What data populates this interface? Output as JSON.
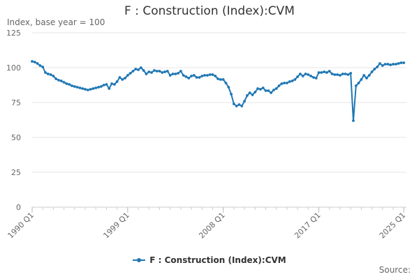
{
  "chart_data": {
    "type": "line",
    "title": "F : Construction (Index):CVM",
    "subtitle": "Index, base year = 100",
    "ylim": [
      0,
      125
    ],
    "yticks": [
      0,
      25,
      50,
      75,
      100,
      125
    ],
    "xlim": [
      1990.0,
      2025.25
    ],
    "xticks": [
      {
        "label": "1990 Q1",
        "x": 1990.0
      },
      {
        "label": "1999 Q1",
        "x": 1999.0
      },
      {
        "label": "2008 Q1",
        "x": 2008.0
      },
      {
        "label": "2017 Q1",
        "x": 2017.0
      },
      {
        "label": "2025 Q1",
        "x": 2025.0
      }
    ],
    "grid": "horizontal",
    "legend": "bottom",
    "series": [
      {
        "name": "F : Construction (Index):CVM",
        "color": "#1f77b4",
        "points": [
          [
            1990.0,
            104.5
          ],
          [
            1990.25,
            104.0
          ],
          [
            1990.5,
            103.0
          ],
          [
            1990.75,
            101.5
          ],
          [
            1991.0,
            100.5
          ],
          [
            1991.25,
            96.5
          ],
          [
            1991.5,
            95.5
          ],
          [
            1991.75,
            95.0
          ],
          [
            1992.0,
            94.0
          ],
          [
            1992.25,
            92.0
          ],
          [
            1992.5,
            91.0
          ],
          [
            1992.75,
            90.5
          ],
          [
            1993.0,
            89.5
          ],
          [
            1993.25,
            88.5
          ],
          [
            1993.5,
            88.0
          ],
          [
            1993.75,
            87.0
          ],
          [
            1994.0,
            86.5
          ],
          [
            1994.25,
            86.0
          ],
          [
            1994.5,
            85.5
          ],
          [
            1994.75,
            85.0
          ],
          [
            1995.0,
            84.5
          ],
          [
            1995.25,
            84.0
          ],
          [
            1995.5,
            84.5
          ],
          [
            1995.75,
            85.0
          ],
          [
            1996.0,
            85.5
          ],
          [
            1996.25,
            86.0
          ],
          [
            1996.5,
            86.5
          ],
          [
            1996.75,
            87.5
          ],
          [
            1997.0,
            88.0
          ],
          [
            1997.25,
            85.0
          ],
          [
            1997.5,
            88.5
          ],
          [
            1997.75,
            88.0
          ],
          [
            1998.0,
            90.0
          ],
          [
            1998.25,
            93.0
          ],
          [
            1998.5,
            91.5
          ],
          [
            1998.75,
            92.5
          ],
          [
            1999.0,
            94.5
          ],
          [
            1999.25,
            96.0
          ],
          [
            1999.5,
            97.5
          ],
          [
            1999.75,
            99.0
          ],
          [
            2000.0,
            98.5
          ],
          [
            2000.25,
            100.0
          ],
          [
            2000.5,
            98.0
          ],
          [
            2000.75,
            95.5
          ],
          [
            2001.0,
            97.0
          ],
          [
            2001.25,
            96.5
          ],
          [
            2001.5,
            98.0
          ],
          [
            2001.75,
            97.5
          ],
          [
            2002.0,
            97.5
          ],
          [
            2002.25,
            96.5
          ],
          [
            2002.5,
            97.0
          ],
          [
            2002.75,
            97.5
          ],
          [
            2003.0,
            94.5
          ],
          [
            2003.25,
            95.5
          ],
          [
            2003.5,
            95.5
          ],
          [
            2003.75,
            96.0
          ],
          [
            2004.0,
            97.5
          ],
          [
            2004.25,
            94.5
          ],
          [
            2004.5,
            93.5
          ],
          [
            2004.75,
            92.5
          ],
          [
            2005.0,
            94.0
          ],
          [
            2005.25,
            94.5
          ],
          [
            2005.5,
            93.0
          ],
          [
            2005.75,
            93.0
          ],
          [
            2006.0,
            94.0
          ],
          [
            2006.25,
            94.5
          ],
          [
            2006.5,
            94.5
          ],
          [
            2006.75,
            95.0
          ],
          [
            2007.0,
            95.0
          ],
          [
            2007.25,
            94.0
          ],
          [
            2007.5,
            92.0
          ],
          [
            2007.75,
            91.5
          ],
          [
            2008.0,
            91.5
          ],
          [
            2008.25,
            89.0
          ],
          [
            2008.5,
            86.0
          ],
          [
            2008.75,
            81.0
          ],
          [
            2009.0,
            74.0
          ],
          [
            2009.25,
            72.5
          ],
          [
            2009.5,
            73.5
          ],
          [
            2009.75,
            72.5
          ],
          [
            2010.0,
            76.0
          ],
          [
            2010.25,
            80.0
          ],
          [
            2010.5,
            82.0
          ],
          [
            2010.75,
            80.5
          ],
          [
            2011.0,
            82.5
          ],
          [
            2011.25,
            85.0
          ],
          [
            2011.5,
            84.5
          ],
          [
            2011.75,
            85.5
          ],
          [
            2012.0,
            83.5
          ],
          [
            2012.25,
            83.5
          ],
          [
            2012.5,
            82.0
          ],
          [
            2012.75,
            84.0
          ],
          [
            2013.0,
            85.0
          ],
          [
            2013.25,
            87.0
          ],
          [
            2013.5,
            88.5
          ],
          [
            2013.75,
            89.0
          ],
          [
            2014.0,
            89.0
          ],
          [
            2014.25,
            90.0
          ],
          [
            2014.5,
            90.5
          ],
          [
            2014.75,
            91.5
          ],
          [
            2015.0,
            93.5
          ],
          [
            2015.25,
            95.5
          ],
          [
            2015.5,
            94.0
          ],
          [
            2015.75,
            95.5
          ],
          [
            2016.0,
            95.0
          ],
          [
            2016.25,
            94.0
          ],
          [
            2016.5,
            93.0
          ],
          [
            2016.75,
            92.5
          ],
          [
            2017.0,
            96.5
          ],
          [
            2017.25,
            96.5
          ],
          [
            2017.5,
            97.0
          ],
          [
            2017.75,
            96.5
          ],
          [
            2018.0,
            97.5
          ],
          [
            2018.25,
            95.5
          ],
          [
            2018.5,
            95.0
          ],
          [
            2018.75,
            95.0
          ],
          [
            2019.0,
            94.5
          ],
          [
            2019.25,
            95.5
          ],
          [
            2019.5,
            95.5
          ],
          [
            2019.75,
            95.0
          ],
          [
            2020.0,
            96.0
          ],
          [
            2020.25,
            62.0
          ],
          [
            2020.5,
            87.0
          ],
          [
            2020.75,
            89.0
          ],
          [
            2021.0,
            91.5
          ],
          [
            2021.25,
            94.5
          ],
          [
            2021.5,
            92.5
          ],
          [
            2021.75,
            94.5
          ],
          [
            2022.0,
            97.0
          ],
          [
            2022.25,
            99.0
          ],
          [
            2022.5,
            100.5
          ],
          [
            2022.75,
            103.0
          ],
          [
            2023.0,
            101.5
          ],
          [
            2023.25,
            102.5
          ],
          [
            2023.5,
            102.5
          ],
          [
            2023.75,
            102.0
          ],
          [
            2024.0,
            102.5
          ],
          [
            2024.25,
            102.5
          ],
          [
            2024.5,
            103.0
          ],
          [
            2024.75,
            103.5
          ],
          [
            2025.0,
            103.5
          ]
        ]
      }
    ]
  },
  "legend": {
    "label": "F : Construction (Index):CVM"
  },
  "footer": {
    "source_label": "Source:"
  }
}
